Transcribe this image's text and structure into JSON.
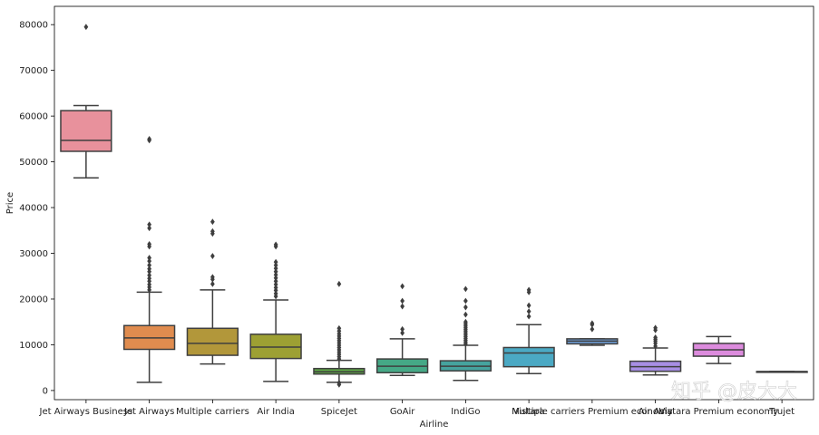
{
  "chart_data": {
    "type": "box",
    "xlabel": "Airline",
    "ylabel": "Price",
    "ylim": [
      -2000,
      84000
    ],
    "yticks": [
      0,
      10000,
      20000,
      30000,
      40000,
      50000,
      60000,
      70000,
      80000
    ],
    "categories": [
      "Jet Airways Business",
      "Jet Airways",
      "Multiple carriers",
      "Air India",
      "SpiceJet",
      "GoAir",
      "IndiGo",
      "Vistara",
      "Multiple carriers Premium economy",
      "Air Asia",
      "Vistara Premium economy",
      "Trujet"
    ],
    "boxes": [
      {
        "name": "Jet Airways Business",
        "color": "#e8919c",
        "whislo": 46500,
        "q1": 52300,
        "med": 54700,
        "q3": 61200,
        "whishi": 62300,
        "fliers": [
          79500
        ]
      },
      {
        "name": "Jet Airways",
        "color": "#e08c4f",
        "whislo": 1800,
        "q1": 9000,
        "med": 11500,
        "q3": 14200,
        "whishi": 21500,
        "fliers": [
          22000,
          22600,
          23200,
          23900,
          24500,
          25200,
          26000,
          26600,
          27400,
          28300,
          29000,
          31500,
          32000,
          35500,
          36300,
          54700,
          55000
        ]
      },
      {
        "name": "Multiple carriers",
        "color": "#b2973a",
        "whislo": 5800,
        "q1": 7700,
        "med": 10300,
        "q3": 13600,
        "whishi": 22000,
        "fliers": [
          23300,
          24300,
          24800,
          29400,
          34300,
          34800,
          36900
        ]
      },
      {
        "name": "Air India",
        "color": "#9da033",
        "whislo": 2000,
        "q1": 7000,
        "med": 9500,
        "q3": 12300,
        "whishi": 19800,
        "fliers": [
          20600,
          21200,
          21900,
          22500,
          23200,
          23900,
          24600,
          25300,
          26000,
          26700,
          27400,
          28100,
          31500,
          31900
        ]
      },
      {
        "name": "SpiceJet",
        "color": "#5da446",
        "whislo": 1800,
        "q1": 3600,
        "med": 4100,
        "q3": 4800,
        "whishi": 6600,
        "fliers": [
          1300,
          1700,
          6900,
          7400,
          7900,
          8400,
          8900,
          9400,
          9900,
          10400,
          10900,
          11400,
          11900,
          12400,
          13000,
          13600,
          23300
        ]
      },
      {
        "name": "GoAir",
        "color": "#45a886",
        "whislo": 3300,
        "q1": 3900,
        "med": 5300,
        "q3": 6900,
        "whishi": 11300,
        "fliers": [
          12600,
          13400,
          18400,
          19600,
          22800
        ]
      },
      {
        "name": "IndiGo",
        "color": "#46a39e",
        "whislo": 2200,
        "q1": 4300,
        "med": 5300,
        "q3": 6500,
        "whishi": 9900,
        "fliers": [
          10200,
          10600,
          11000,
          11400,
          11800,
          12200,
          12600,
          13000,
          13400,
          13800,
          14200,
          14600,
          15000,
          16600,
          18200,
          19600,
          22200
        ]
      },
      {
        "name": "Vistara",
        "color": "#4ba9c4",
        "whislo": 3700,
        "q1": 5200,
        "med": 8200,
        "q3": 9400,
        "whishi": 14400,
        "fliers": [
          16200,
          17300,
          18600,
          21500,
          22000
        ]
      },
      {
        "name": "Multiple carriers Premium economy",
        "color": "#6f9fd8",
        "whislo": 9900,
        "q1": 10200,
        "med": 10800,
        "q3": 11300,
        "whishi": 11300,
        "fliers": [
          13400,
          14400,
          14700
        ]
      },
      {
        "name": "Air Asia",
        "color": "#a78ee4",
        "whislo": 3400,
        "q1": 4200,
        "med": 5200,
        "q3": 6400,
        "whishi": 9300,
        "fliers": [
          9700,
          10300,
          10800,
          11200,
          11600,
          13200,
          13700
        ]
      },
      {
        "name": "Vistara Premium economy",
        "color": "#dc8bdd",
        "whislo": 5900,
        "q1": 7500,
        "med": 8900,
        "q3": 10300,
        "whishi": 11800,
        "fliers": []
      },
      {
        "name": "Trujet",
        "color": "#e88ec4",
        "whislo": 4140,
        "q1": 4140,
        "med": 4140,
        "q3": 4140,
        "whishi": 4140,
        "fliers": []
      }
    ]
  },
  "watermark": "知乎 @皮大大"
}
